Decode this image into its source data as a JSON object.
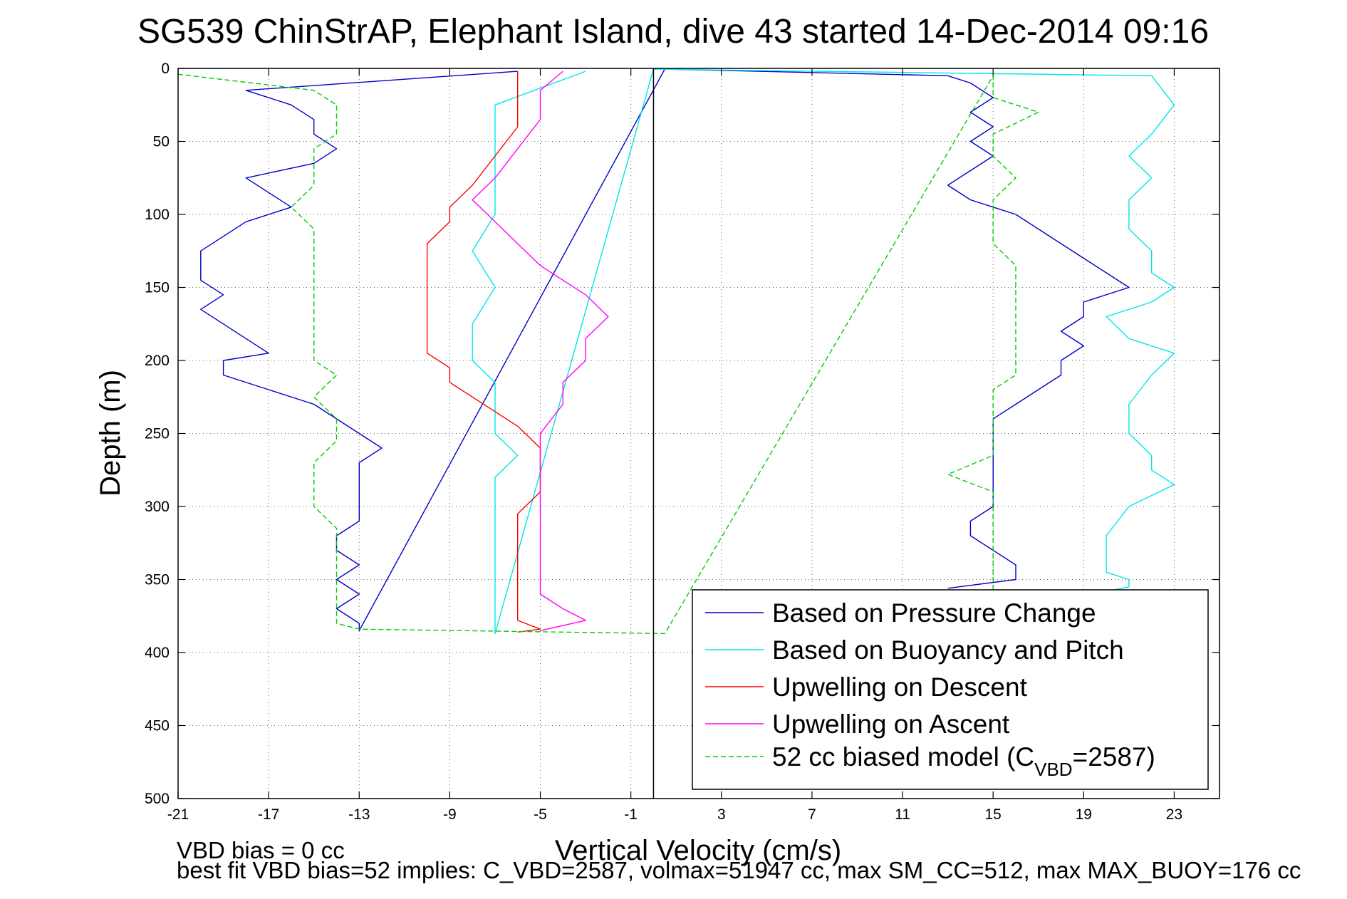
{
  "chart_data": {
    "type": "line",
    "title": "SG539 ChinStrAP, Elephant Island, dive 43 started 14-Dec-2014 09:16",
    "xlabel": "Vertical Velocity (cm/s)",
    "ylabel": "Depth (m)",
    "xlim": [
      -21,
      25
    ],
    "ylim": [
      500,
      0
    ],
    "y_reversed": true,
    "grid": true,
    "grid_style": "dotted",
    "legend_position": "bottom-right",
    "x_ticks": [
      "-21",
      "-17",
      "-13",
      "-9",
      "-5",
      "-1",
      "3",
      "7",
      "11",
      "15",
      "19",
      "23"
    ],
    "y_ticks": [
      "0",
      "50",
      "100",
      "150",
      "200",
      "250",
      "300",
      "350",
      "400",
      "450",
      "500"
    ],
    "reference_line_x": 0,
    "series": [
      {
        "name": "Based on Pressure Change",
        "color": "#0000cc",
        "style": "solid",
        "x": [
          -6,
          -18,
          -16,
          -15,
          -15,
          -14,
          -15,
          -18,
          -17,
          -16,
          -18,
          -19,
          -20,
          -20,
          -20,
          -19,
          -20,
          -19,
          -18,
          -17,
          -19,
          -19,
          -17,
          -15,
          -14,
          -13,
          -12,
          -13,
          -13,
          -13,
          -13,
          -13,
          -14,
          -14,
          -13,
          -14,
          -13,
          -14,
          -13,
          -13,
          0.5,
          13,
          14,
          15,
          14,
          15,
          14,
          15,
          14,
          13,
          14,
          16,
          17,
          18,
          19,
          20,
          21,
          19,
          19,
          18,
          19,
          18,
          18,
          17,
          16,
          15,
          15,
          15,
          15,
          15,
          15,
          15,
          14,
          14,
          15,
          16,
          16,
          13
        ],
        "y": [
          2,
          15,
          25,
          35,
          45,
          55,
          65,
          75,
          85,
          95,
          105,
          115,
          125,
          135,
          145,
          155,
          165,
          175,
          185,
          195,
          200,
          210,
          220,
          230,
          240,
          250,
          260,
          270,
          280,
          290,
          300,
          310,
          320,
          330,
          340,
          350,
          360,
          370,
          380,
          385,
          0.5,
          5,
          10,
          20,
          30,
          40,
          50,
          60,
          70,
          80,
          90,
          100,
          110,
          120,
          130,
          140,
          150,
          160,
          170,
          180,
          190,
          200,
          210,
          220,
          230,
          240,
          250,
          260,
          270,
          280,
          290,
          300,
          310,
          320,
          330,
          340,
          350,
          356
        ]
      },
      {
        "name": "Based on Buoyancy and Pitch",
        "color": "#00e6e6",
        "style": "solid",
        "x": [
          -3,
          -7,
          -7,
          -7,
          -7,
          -8,
          -7,
          -8,
          -8,
          -7,
          -7,
          -7,
          -6,
          -7,
          -7,
          -7,
          -7,
          -7,
          -7,
          -7,
          -7,
          -7,
          -7,
          -7,
          -7,
          0,
          22,
          23,
          22,
          21,
          22,
          21,
          21,
          22,
          22,
          23,
          22,
          20,
          21,
          23,
          22,
          21,
          21,
          22,
          22,
          23,
          21,
          20,
          20,
          20,
          21,
          21,
          21,
          20
        ],
        "y": [
          2,
          25,
          50,
          75,
          100,
          125,
          150,
          175,
          200,
          215,
          225,
          250,
          265,
          280,
          300,
          320,
          340,
          350,
          360,
          370,
          378,
          382,
          385,
          386,
          387,
          0.5,
          5,
          25,
          45,
          60,
          75,
          90,
          110,
          125,
          140,
          150,
          160,
          170,
          185,
          195,
          210,
          230,
          250,
          265,
          275,
          285,
          300,
          320,
          335,
          345,
          350,
          353,
          355,
          358
        ]
      },
      {
        "name": "Upwelling on Descent",
        "color": "#ff0000",
        "style": "solid",
        "x": [
          -6,
          -6,
          -6,
          -7,
          -8,
          -9,
          -9,
          -10,
          -10,
          -10,
          -10,
          -10,
          -9,
          -9,
          -8,
          -7,
          -6,
          -5,
          -5,
          -5,
          -6,
          -6,
          -6,
          -6,
          -6,
          -6,
          -6,
          -5,
          -6
        ],
        "y": [
          2,
          15,
          40,
          60,
          80,
          95,
          105,
          120,
          140,
          155,
          175,
          195,
          205,
          215,
          225,
          235,
          245,
          260,
          275,
          290,
          305,
          320,
          335,
          350,
          360,
          370,
          378,
          384,
          386
        ]
      },
      {
        "name": "Upwelling on Ascent",
        "color": "#ff00ff",
        "style": "solid",
        "x": [
          -4,
          -5,
          -5,
          -6,
          -7,
          -8,
          -7,
          -6,
          -5,
          -4,
          -3,
          -2,
          -3,
          -3,
          -4,
          -4,
          -5,
          -5,
          -5,
          -5,
          -5,
          -5,
          -5,
          -4,
          -3,
          -5
        ],
        "y": [
          2,
          15,
          35,
          55,
          75,
          90,
          105,
          120,
          135,
          145,
          155,
          170,
          185,
          200,
          215,
          230,
          250,
          270,
          290,
          310,
          330,
          345,
          360,
          370,
          378,
          385
        ]
      },
      {
        "name": "52 cc biased model (C",
        "name_sub": "VBD",
        "name_suffix": "=2587)",
        "color": "#00cc00",
        "style": "dashed",
        "x": [
          -21,
          -15,
          -14,
          -14,
          -14,
          -15,
          -15,
          -15,
          -16,
          -15,
          -15,
          -15,
          -15,
          -15,
          -15,
          -15,
          -15,
          -14,
          -15,
          -14,
          -14,
          -15,
          -15,
          -15,
          -14,
          -14,
          -14,
          -14,
          -14,
          -14,
          -13,
          0.5,
          15,
          15,
          17,
          15,
          15,
          16,
          15,
          15,
          15,
          16,
          16,
          16,
          16,
          16,
          16,
          16,
          15,
          15,
          15,
          15,
          13,
          15,
          15,
          15,
          15,
          15
        ],
        "y": [
          4,
          15,
          25,
          35,
          45,
          55,
          65,
          80,
          95,
          110,
          125,
          140,
          155,
          165,
          175,
          190,
          200,
          210,
          225,
          240,
          255,
          270,
          285,
          300,
          315,
          330,
          345,
          360,
          370,
          380,
          384,
          387,
          5,
          20,
          30,
          45,
          60,
          75,
          90,
          105,
          120,
          135,
          150,
          165,
          180,
          190,
          200,
          210,
          220,
          235,
          250,
          265,
          278,
          290,
          310,
          330,
          345,
          357
        ]
      }
    ]
  },
  "footer": {
    "line1": "VBD bias = 0 cc",
    "line2": "best fit VBD bias=52 implies: C_VBD=2587, volmax=51947 cc, max SM_CC=512, max MAX_BUOY=176 cc"
  }
}
